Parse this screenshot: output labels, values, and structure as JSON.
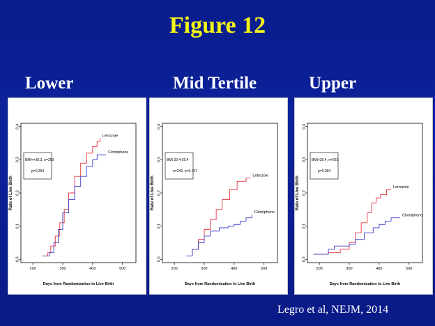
{
  "slide": {
    "title": "Figure 12",
    "citation": "Legro et al, NEJM, 2014"
  },
  "panel_titles": [
    "Lower",
    "Mid Tertile",
    "Upper"
  ],
  "colors": {
    "letrozole": "#e8323c",
    "clomiphene": "#3c3cc8",
    "background": "#0c239c",
    "title": "#f4f415"
  },
  "chart_data": [
    {
      "type": "line",
      "title": "Lower",
      "xlabel": "Days from Randomization to Live Birth",
      "ylabel": "Rate of Live Birth",
      "xlim": [
        160,
        545
      ],
      "ylim": [
        -0.01,
        0.41
      ],
      "xticks": [
        200,
        300,
        400,
        500
      ],
      "yticks": [
        0.0,
        0.1,
        0.2,
        0.3,
        0.4
      ],
      "legend_lines": [
        "BMI<=30.3, n=250",
        "p=0.394"
      ],
      "series": [
        {
          "name": "Letrozole",
          "color": "#e8323c",
          "points": [
            [
              230,
              0.01
            ],
            [
              250,
              0.02
            ],
            [
              260,
              0.04
            ],
            [
              275,
              0.07
            ],
            [
              290,
              0.11
            ],
            [
              305,
              0.15
            ],
            [
              320,
              0.2
            ],
            [
              340,
              0.25
            ],
            [
              360,
              0.29
            ],
            [
              380,
              0.32
            ],
            [
              400,
              0.34
            ],
            [
              415,
              0.355
            ],
            [
              425,
              0.365
            ]
          ]
        },
        {
          "name": "Clomiphene",
          "color": "#3c3cc8",
          "points": [
            [
              235,
              0.01
            ],
            [
              255,
              0.02
            ],
            [
              270,
              0.05
            ],
            [
              285,
              0.09
            ],
            [
              300,
              0.14
            ],
            [
              320,
              0.18
            ],
            [
              340,
              0.22
            ],
            [
              360,
              0.25
            ],
            [
              380,
              0.28
            ],
            [
              400,
              0.3
            ],
            [
              415,
              0.315
            ],
            [
              445,
              0.315
            ]
          ]
        }
      ]
    },
    {
      "type": "line",
      "title": "Mid Tertile",
      "xlabel": "Days from Randomization to Live Birth",
      "ylabel": "Rate of Live Birth",
      "xlim": [
        160,
        545
      ],
      "ylim": [
        -0.01,
        0.41
      ],
      "xticks": [
        200,
        300,
        400,
        500
      ],
      "yticks": [
        0.0,
        0.1,
        0.2,
        0.3,
        0.4
      ],
      "legend_lines": [
        "BMI 30.4-39.4",
        "n=249, p=0.027"
      ],
      "series": [
        {
          "name": "Letrozole",
          "color": "#e8323c",
          "points": [
            [
              240,
              0.01
            ],
            [
              260,
              0.03
            ],
            [
              280,
              0.06
            ],
            [
              300,
              0.09
            ],
            [
              320,
              0.12
            ],
            [
              340,
              0.15
            ],
            [
              360,
              0.18
            ],
            [
              385,
              0.21
            ],
            [
              410,
              0.235
            ],
            [
              440,
              0.245
            ],
            [
              455,
              0.245
            ]
          ]
        },
        {
          "name": "Clomiphene",
          "color": "#3c3cc8",
          "points": [
            [
              240,
              0.01
            ],
            [
              260,
              0.03
            ],
            [
              280,
              0.05
            ],
            [
              300,
              0.07
            ],
            [
              320,
              0.085
            ],
            [
              350,
              0.095
            ],
            [
              380,
              0.1
            ],
            [
              400,
              0.105
            ],
            [
              420,
              0.115
            ],
            [
              440,
              0.125
            ],
            [
              460,
              0.135
            ]
          ]
        }
      ]
    },
    {
      "type": "line",
      "title": "Upper",
      "xlabel": "Days from Randomization to Live Birth",
      "ylabel": "Rate of Live Birth",
      "xlim": [
        160,
        545
      ],
      "ylim": [
        -0.01,
        0.41
      ],
      "xticks": [
        200,
        300,
        400,
        500
      ],
      "yticks": [
        0.0,
        0.1,
        0.2,
        0.3,
        0.4
      ],
      "legend_lines": [
        "BMI>39.4, n=251",
        "p=0.094"
      ],
      "series": [
        {
          "name": "Letrozole",
          "color": "#e8323c",
          "points": [
            [
              180,
              0.015
            ],
            [
              230,
              0.02
            ],
            [
              270,
              0.03
            ],
            [
              300,
              0.05
            ],
            [
              320,
              0.08
            ],
            [
              340,
              0.11
            ],
            [
              360,
              0.14
            ],
            [
              375,
              0.17
            ],
            [
              390,
              0.185
            ],
            [
              405,
              0.195
            ],
            [
              425,
              0.21
            ],
            [
              440,
              0.21
            ]
          ]
        },
        {
          "name": "Clomiphene",
          "color": "#3c3cc8",
          "points": [
            [
              180,
              0.015
            ],
            [
              230,
              0.03
            ],
            [
              250,
              0.04
            ],
            [
              300,
              0.045
            ],
            [
              320,
              0.06
            ],
            [
              350,
              0.08
            ],
            [
              380,
              0.095
            ],
            [
              400,
              0.105
            ],
            [
              420,
              0.115
            ],
            [
              440,
              0.125
            ],
            [
              470,
              0.125
            ]
          ]
        }
      ]
    }
  ]
}
